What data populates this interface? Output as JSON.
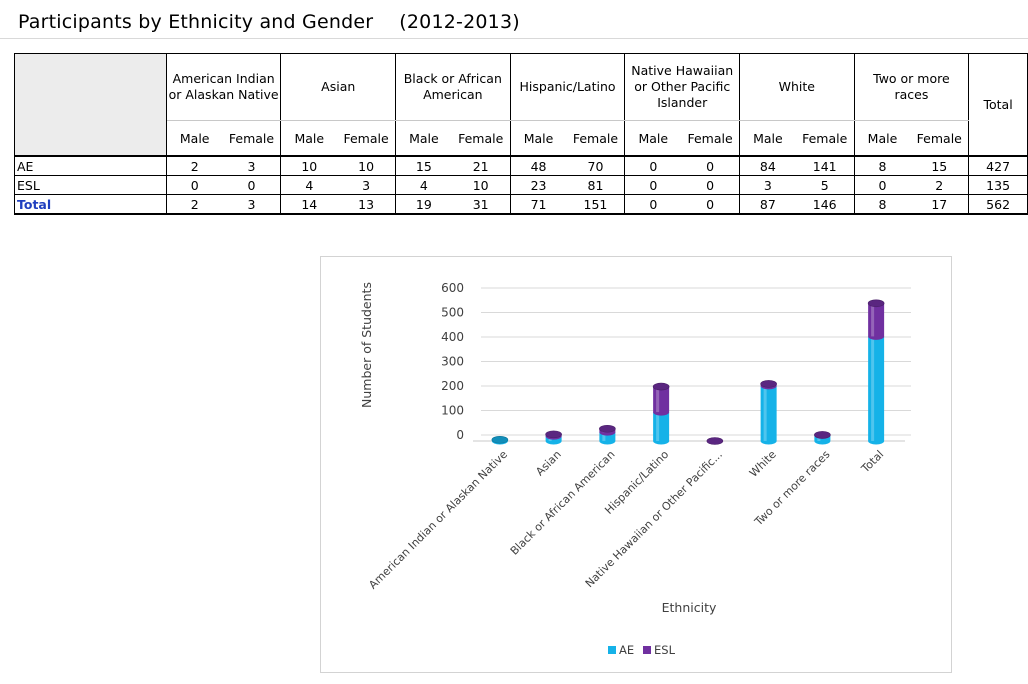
{
  "page": {
    "title": "Participants by Ethnicity and Gender",
    "years": "(2012-2013)"
  },
  "table": {
    "groups": [
      "American Indian or Alaskan Native",
      "Asian",
      "Black or African American",
      "Hispanic/Latino",
      "Native Hawaiian or Other Pacific Islander",
      "White",
      "Two or more races"
    ],
    "total_header": "Total",
    "sub_headers": [
      "Male",
      "Female"
    ],
    "rows": [
      {
        "label": "AE",
        "values": [
          "2",
          "3",
          "10",
          "10",
          "15",
          "21",
          "48",
          "70",
          "0",
          "0",
          "84",
          "141",
          "8",
          "15"
        ],
        "total": "427"
      },
      {
        "label": "ESL",
        "values": [
          "0",
          "0",
          "4",
          "3",
          "4",
          "10",
          "23",
          "81",
          "0",
          "0",
          "3",
          "5",
          "0",
          "2"
        ],
        "total": "135"
      },
      {
        "label": "Total",
        "values": [
          "2",
          "3",
          "14",
          "13",
          "19",
          "31",
          "71",
          "151",
          "0",
          "0",
          "87",
          "146",
          "8",
          "17"
        ],
        "total": "562"
      }
    ]
  },
  "chart_data": {
    "type": "bar",
    "stacked": true,
    "categories": [
      "American Indian or Alaskan Native",
      "Asian",
      "Black or African American",
      "Hispanic/Latino",
      "Native Hawaiian or Other Pacific...",
      "White",
      "Two or more races",
      "Total"
    ],
    "series": [
      {
        "name": "AE",
        "values": [
          5,
          20,
          36,
          118,
          0,
          225,
          23,
          427
        ],
        "color": "#15b2e8"
      },
      {
        "name": "ESL",
        "values": [
          0,
          7,
          14,
          104,
          0,
          8,
          2,
          135
        ],
        "color": "#7030a0"
      }
    ],
    "xlabel": "Ethnicity",
    "ylabel": "Number of Students",
    "ylim": [
      0,
      600
    ],
    "yticks": [
      "0",
      "100",
      "200",
      "300",
      "400",
      "500",
      "600"
    ],
    "grid": true,
    "legend_position": "bottom"
  }
}
